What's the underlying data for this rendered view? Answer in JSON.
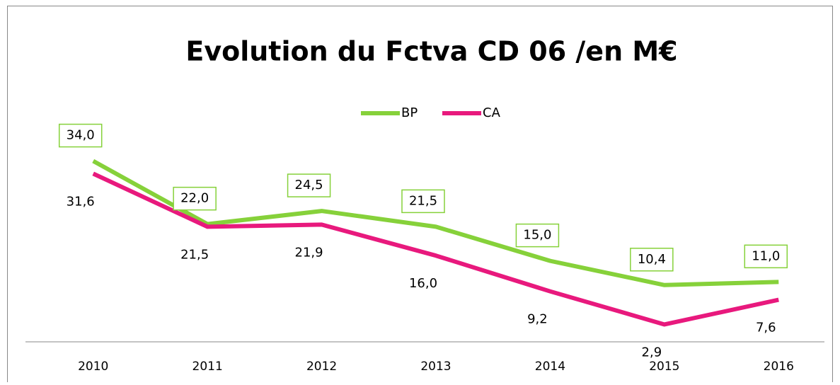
{
  "chart_data": {
    "type": "line",
    "title": "Evolution du Fctva CD 06 /en M€",
    "categories": [
      "2010",
      "2011",
      "2012",
      "2013",
      "2014",
      "2015",
      "2016"
    ],
    "series": [
      {
        "name": "BP",
        "color": "#86d13a",
        "values": [
          34.0,
          22.0,
          24.5,
          21.5,
          15.0,
          10.4,
          11.0
        ],
        "value_labels": [
          "34,0",
          "22,0",
          "24,5",
          "21,5",
          "15,0",
          "10,4",
          "11,0"
        ]
      },
      {
        "name": "CA",
        "color": "#e8197d",
        "values": [
          31.6,
          21.5,
          21.9,
          16.0,
          9.2,
          2.9,
          7.6
        ],
        "value_labels": [
          "31,6",
          "21,5",
          "21,9",
          "16,0",
          "9,2",
          "2,9",
          "7,6"
        ]
      }
    ],
    "ylim": [
      0,
      40
    ],
    "legend": "top"
  }
}
